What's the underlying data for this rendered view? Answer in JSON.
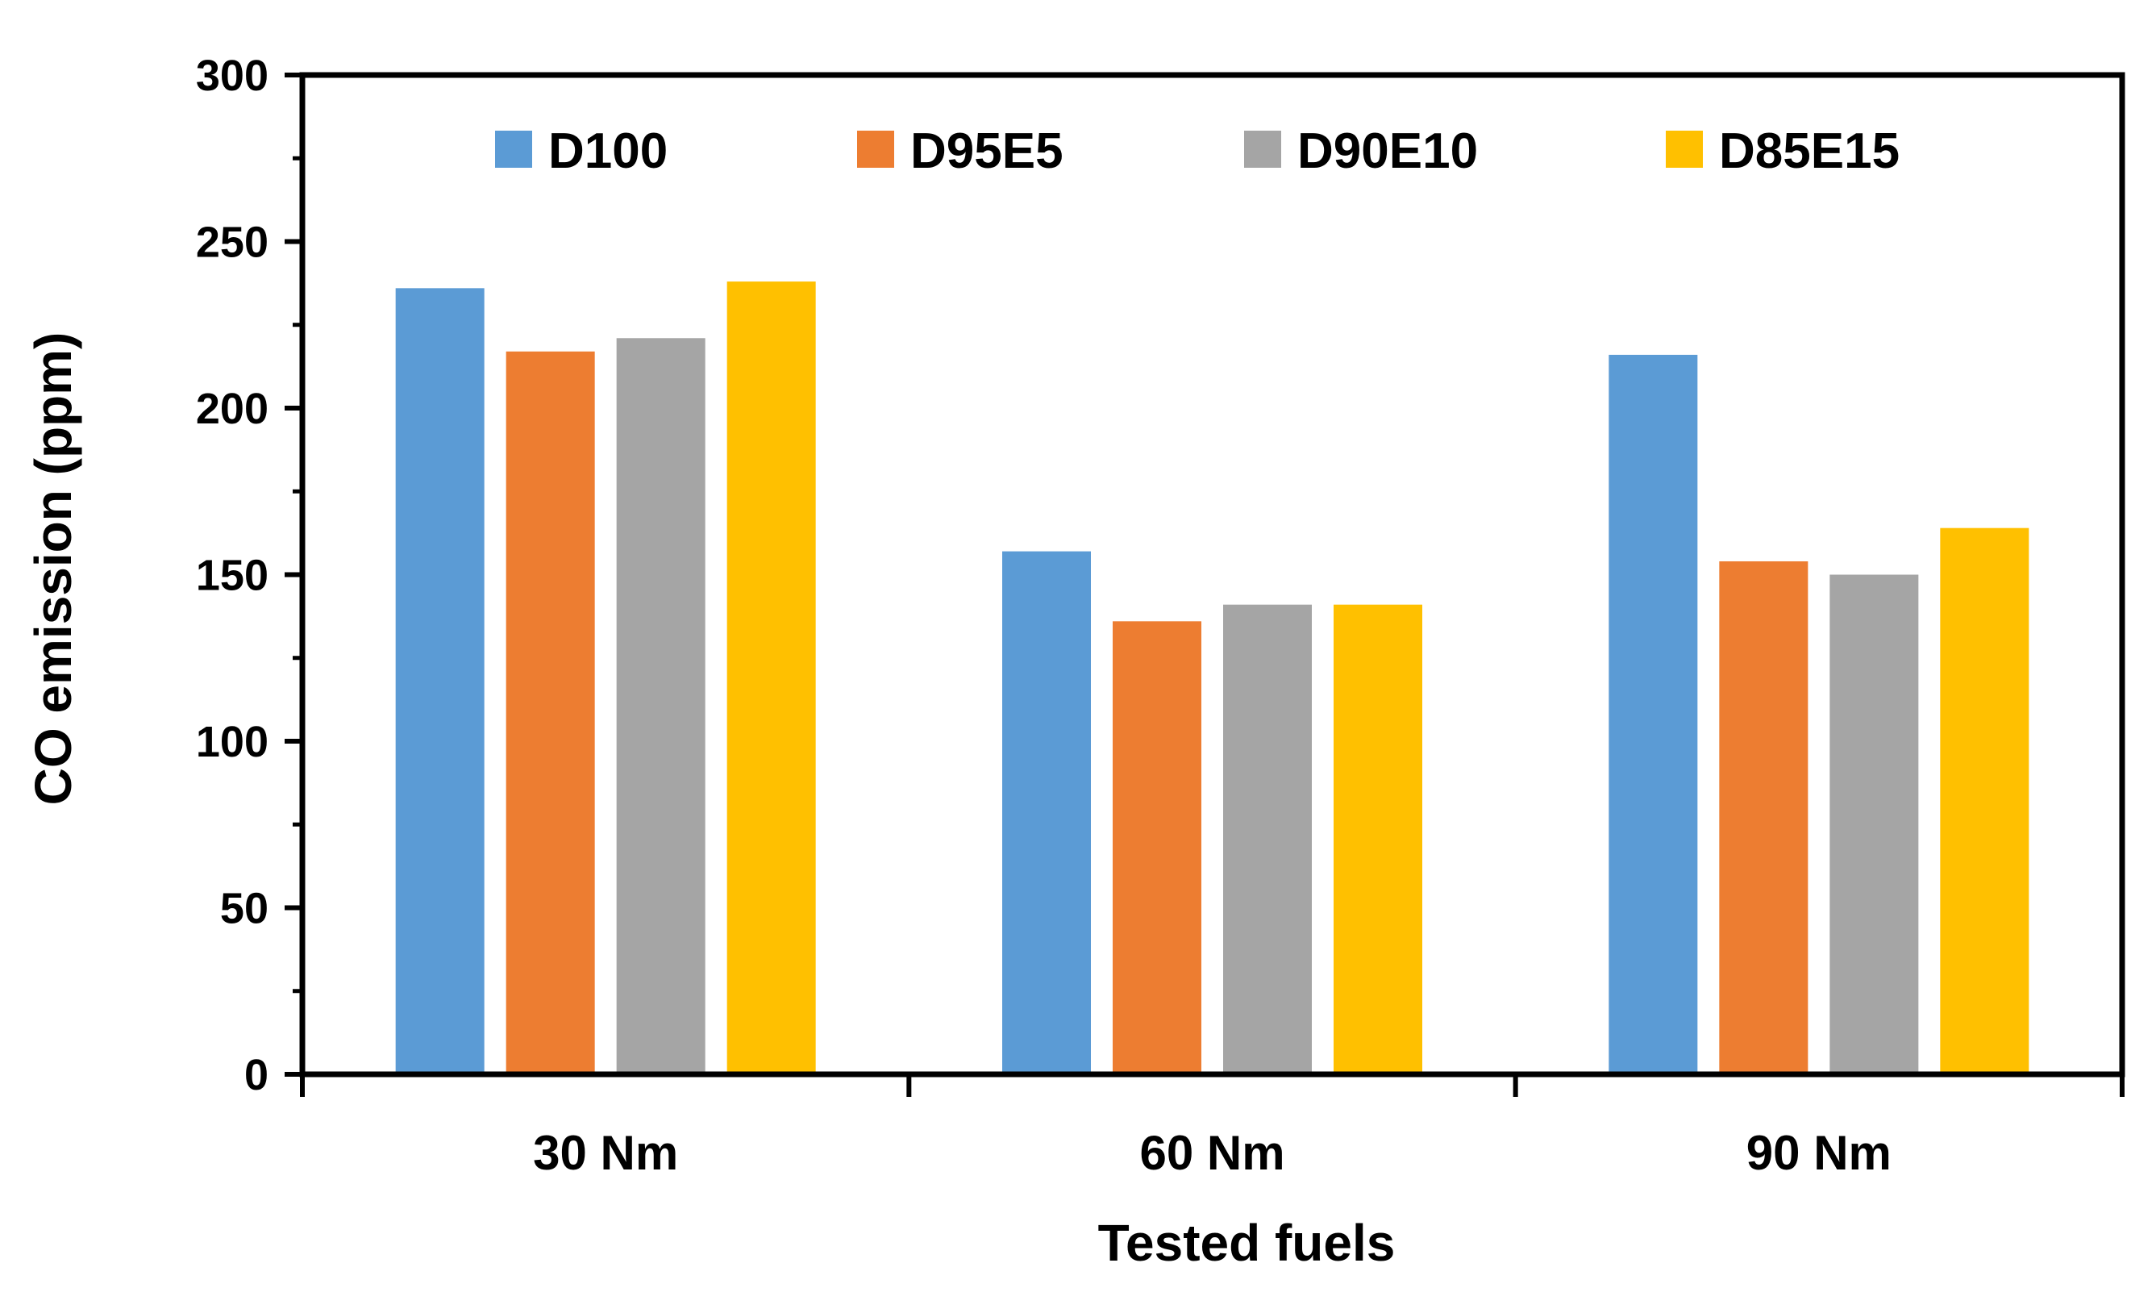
{
  "chart_data": {
    "type": "bar",
    "title": "",
    "xlabel": "Tested fuels",
    "ylabel": "CO emission (ppm)",
    "ylim": [
      0,
      300
    ],
    "yticks": [
      0,
      50,
      100,
      150,
      200,
      250,
      300
    ],
    "grid": false,
    "legend_position": "top",
    "categories": [
      "30 Nm",
      "60 Nm",
      "90 Nm"
    ],
    "series": [
      {
        "name": "D100",
        "color": "#5B9BD5",
        "values": [
          236,
          157,
          216
        ]
      },
      {
        "name": "D95E5",
        "color": "#ED7D31",
        "values": [
          217,
          136,
          154
        ]
      },
      {
        "name": "D90E10",
        "color": "#A5A5A5",
        "values": [
          221,
          141,
          150
        ]
      },
      {
        "name": "D85E15",
        "color": "#FFC000",
        "values": [
          238,
          141,
          164
        ]
      }
    ]
  }
}
